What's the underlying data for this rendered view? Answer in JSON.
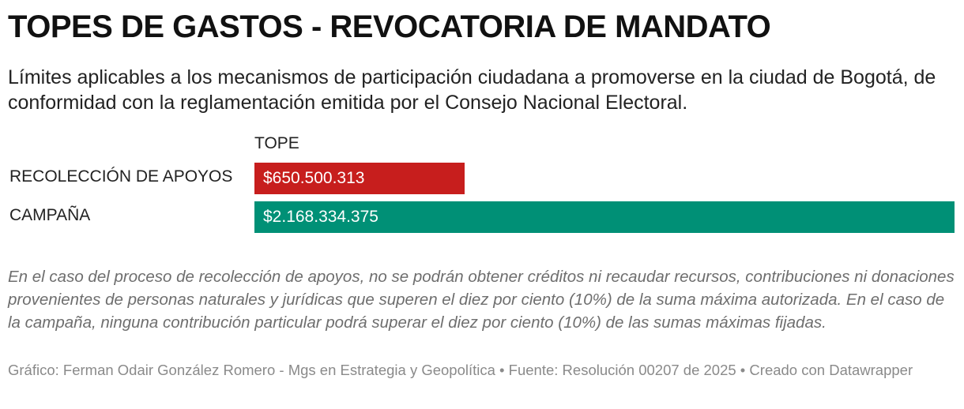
{
  "chart_data": {
    "type": "bar",
    "orientation": "horizontal",
    "title": "TOPES DE GASTOS - REVOCATORIA DE MANDATO",
    "subtitle": "Límites aplicables a los mecanismos de participación ciudadana a promoverse en la ciudad de Bogotá, de conformidad con la reglamentación emitida por el Consejo Nacional Electoral.",
    "column_header": "TOPE",
    "categories": [
      "RECOLECCIÓN DE APOYOS",
      "CAMPAÑA"
    ],
    "values": [
      650500313,
      2168334375
    ],
    "value_labels": [
      "$650.500.313",
      "$2.168.334.375"
    ],
    "colors": [
      "#c71e1d",
      "#009076"
    ],
    "xlim": [
      0,
      2168334375
    ],
    "notes": "En el caso del proceso de recolección de apoyos, no se podrán obtener créditos ni recaudar recursos, contribuciones ni donaciones provenientes de personas naturales y jurídicas que superen el diez por ciento (10%) de la suma máxima autorizada. En el caso de la campaña, ninguna contribución particular podrá superar el diez por ciento (10%) de las sumas máximas fijadas.",
    "footer": "Gráfico: Ferman Odair González Romero - Mgs en Estrategia y Geopolítica • Fuente: Resolución 00207 de 2025 • Creado con Datawrapper"
  }
}
